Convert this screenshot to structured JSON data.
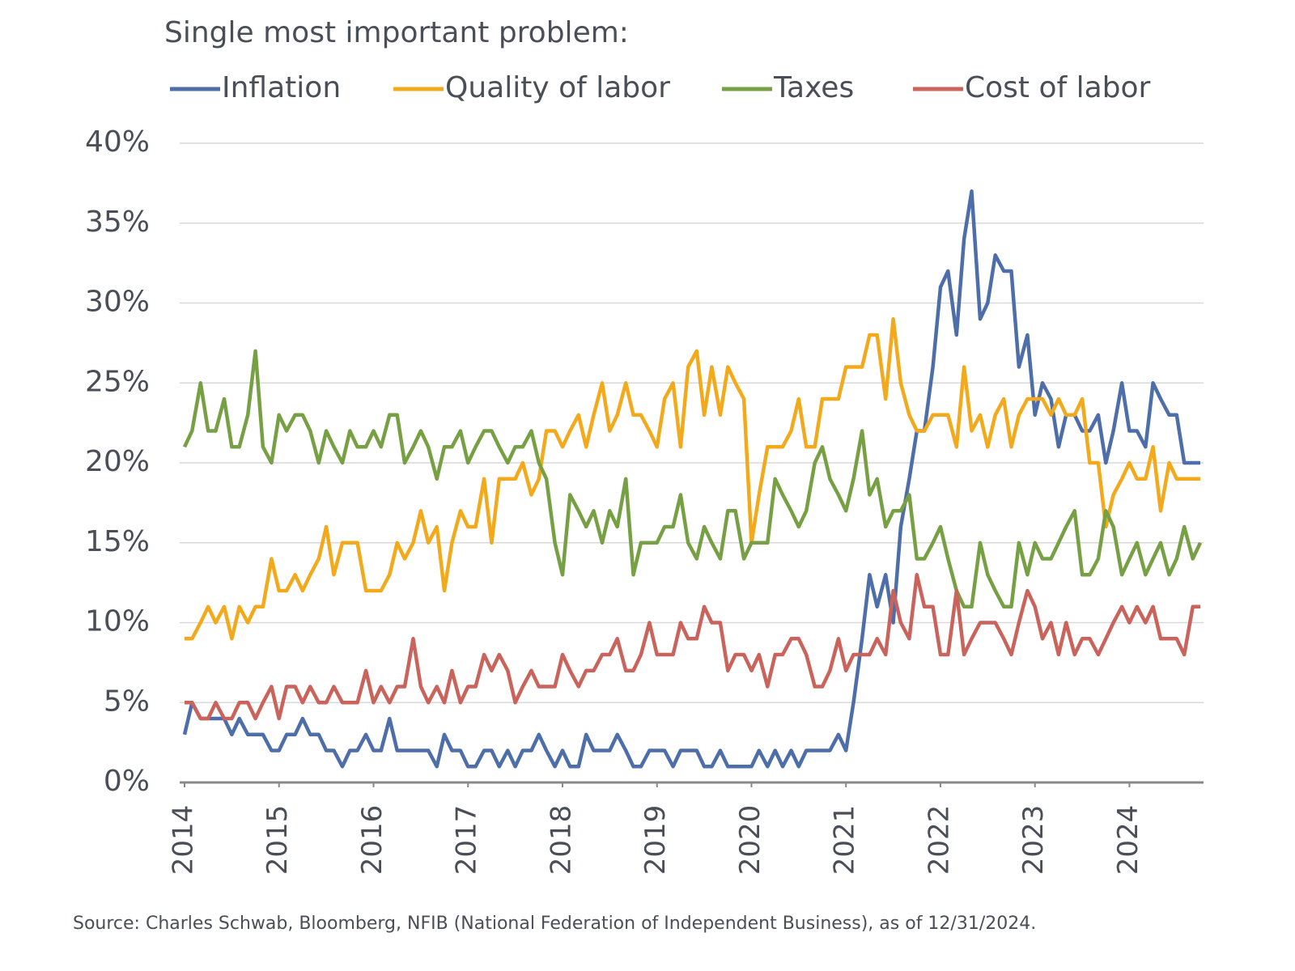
{
  "chart_data": {
    "type": "line",
    "title": "Single most important problem:",
    "source": "Source: Charles Schwab, Bloomberg, NFIB (National Federation of Independent Business), as of 12/31/2024.",
    "x": [
      2014,
      2014.08,
      2014.17,
      2014.25,
      2014.33,
      2014.42,
      2014.5,
      2014.58,
      2014.67,
      2014.75,
      2014.83,
      2014.92,
      2015,
      2015.08,
      2015.17,
      2015.25,
      2015.33,
      2015.42,
      2015.5,
      2015.58,
      2015.67,
      2015.75,
      2015.83,
      2015.92,
      2016,
      2016.08,
      2016.17,
      2016.25,
      2016.33,
      2016.42,
      2016.5,
      2016.58,
      2016.67,
      2016.75,
      2016.83,
      2016.92,
      2017,
      2017.08,
      2017.17,
      2017.25,
      2017.33,
      2017.42,
      2017.5,
      2017.58,
      2017.67,
      2017.75,
      2017.83,
      2017.92,
      2018,
      2018.08,
      2018.17,
      2018.25,
      2018.33,
      2018.42,
      2018.5,
      2018.58,
      2018.67,
      2018.75,
      2018.83,
      2018.92,
      2019,
      2019.08,
      2019.17,
      2019.25,
      2019.33,
      2019.42,
      2019.5,
      2019.58,
      2019.67,
      2019.75,
      2019.83,
      2019.92,
      2020,
      2020.08,
      2020.17,
      2020.25,
      2020.33,
      2020.42,
      2020.5,
      2020.58,
      2020.67,
      2020.75,
      2020.83,
      2020.92,
      2021,
      2021.08,
      2021.17,
      2021.25,
      2021.33,
      2021.42,
      2021.5,
      2021.58,
      2021.67,
      2021.75,
      2021.83,
      2021.92,
      2022,
      2022.08,
      2022.17,
      2022.25,
      2022.33,
      2022.42,
      2022.5,
      2022.58,
      2022.67,
      2022.75,
      2022.83,
      2022.92,
      2023,
      2023.08,
      2023.17,
      2023.25,
      2023.33,
      2023.42,
      2023.5,
      2023.58,
      2023.67,
      2023.75,
      2023.83,
      2023.92,
      2024,
      2024.08,
      2024.17,
      2024.25,
      2024.33,
      2024.42,
      2024.5,
      2024.58,
      2024.67,
      2024.75
    ],
    "series": [
      {
        "name": "Inflation",
        "color": "#4d6ea8",
        "values": [
          3,
          5,
          4,
          4,
          4,
          4,
          3,
          4,
          3,
          3,
          3,
          2,
          2,
          3,
          3,
          4,
          3,
          3,
          2,
          2,
          1,
          2,
          2,
          3,
          2,
          2,
          4,
          2,
          2,
          2,
          2,
          2,
          1,
          3,
          2,
          2,
          1,
          1,
          2,
          2,
          1,
          2,
          1,
          2,
          2,
          3,
          2,
          1,
          2,
          1,
          1,
          3,
          2,
          2,
          2,
          3,
          2,
          1,
          1,
          2,
          2,
          2,
          1,
          2,
          2,
          2,
          1,
          1,
          2,
          1,
          1,
          1,
          1,
          2,
          1,
          2,
          1,
          2,
          1,
          2,
          2,
          2,
          2,
          3,
          2,
          5,
          9,
          13,
          11,
          13,
          10,
          16,
          19,
          22,
          22,
          26,
          31,
          32,
          28,
          34,
          37,
          29,
          30,
          33,
          32,
          32,
          26,
          28,
          23,
          25,
          24,
          21,
          23,
          23,
          22,
          22,
          23,
          20,
          22,
          25,
          22,
          22,
          21,
          25,
          24,
          23,
          23,
          20,
          20,
          20
        ]
      },
      {
        "name": "Quality of labor",
        "color": "#f2aa1c",
        "values": [
          9,
          9,
          10,
          11,
          10,
          11,
          9,
          11,
          10,
          11,
          11,
          14,
          12,
          12,
          13,
          12,
          13,
          14,
          16,
          13,
          15,
          15,
          15,
          12,
          12,
          12,
          13,
          15,
          14,
          15,
          17,
          15,
          16,
          12,
          15,
          17,
          16,
          16,
          19,
          15,
          19,
          19,
          19,
          20,
          18,
          19,
          22,
          22,
          21,
          22,
          23,
          21,
          23,
          25,
          22,
          23,
          25,
          23,
          23,
          22,
          21,
          24,
          25,
          21,
          26,
          27,
          23,
          26,
          23,
          26,
          25,
          24,
          15,
          18,
          21,
          21,
          21,
          22,
          24,
          21,
          21,
          24,
          24,
          24,
          26,
          26,
          26,
          28,
          28,
          24,
          29,
          25,
          23,
          22,
          22,
          23,
          23,
          23,
          21,
          26,
          22,
          23,
          21,
          23,
          24,
          21,
          23,
          24,
          24,
          24,
          23,
          24,
          23,
          23,
          24,
          20,
          20,
          16,
          18,
          19,
          20,
          19,
          19,
          21,
          17,
          20,
          19,
          19,
          19,
          19
        ]
      },
      {
        "name": "Taxes",
        "color": "#76a043",
        "values": [
          21,
          22,
          25,
          22,
          22,
          24,
          21,
          21,
          23,
          27,
          21,
          20,
          23,
          22,
          23,
          23,
          22,
          20,
          22,
          21,
          20,
          22,
          21,
          21,
          22,
          21,
          23,
          23,
          20,
          21,
          22,
          21,
          19,
          21,
          21,
          22,
          20,
          21,
          22,
          22,
          21,
          20,
          21,
          21,
          22,
          20,
          19,
          15,
          13,
          18,
          17,
          16,
          17,
          15,
          17,
          16,
          19,
          13,
          15,
          15,
          15,
          16,
          16,
          18,
          15,
          14,
          16,
          15,
          14,
          17,
          17,
          14,
          15,
          15,
          15,
          19,
          18,
          17,
          16,
          17,
          20,
          21,
          19,
          18,
          17,
          19,
          22,
          18,
          19,
          16,
          17,
          17,
          18,
          14,
          14,
          15,
          16,
          14,
          12,
          11,
          11,
          15,
          13,
          12,
          11,
          11,
          15,
          13,
          15,
          14,
          14,
          15,
          16,
          17,
          13,
          13,
          14,
          17,
          16,
          13,
          14,
          15,
          13,
          14,
          15,
          13,
          14,
          16,
          14,
          15
        ]
      },
      {
        "name": "Cost of labor",
        "color": "#c9635b",
        "values": [
          5,
          5,
          4,
          4,
          5,
          4,
          4,
          5,
          5,
          4,
          5,
          6,
          4,
          6,
          6,
          5,
          6,
          5,
          5,
          6,
          5,
          5,
          5,
          7,
          5,
          6,
          5,
          6,
          6,
          9,
          6,
          5,
          6,
          5,
          7,
          5,
          6,
          6,
          8,
          7,
          8,
          7,
          5,
          6,
          7,
          6,
          6,
          6,
          8,
          7,
          6,
          7,
          7,
          8,
          8,
          9,
          7,
          7,
          8,
          10,
          8,
          8,
          8,
          10,
          9,
          9,
          11,
          10,
          10,
          7,
          8,
          8,
          7,
          8,
          6,
          8,
          8,
          9,
          9,
          8,
          6,
          6,
          7,
          9,
          7,
          8,
          8,
          8,
          9,
          8,
          12,
          10,
          9,
          13,
          11,
          11,
          8,
          8,
          12,
          8,
          9,
          10,
          10,
          10,
          9,
          8,
          10,
          12,
          11,
          9,
          10,
          8,
          10,
          8,
          9,
          9,
          8,
          9,
          10,
          11,
          10,
          11,
          10,
          11,
          9,
          9,
          9,
          8,
          11,
          11
        ]
      }
    ],
    "xlim": [
      2014,
      2024.75
    ],
    "xticks": [
      2014,
      2015,
      2016,
      2017,
      2018,
      2019,
      2020,
      2021,
      2022,
      2023,
      2024
    ],
    "ylim": [
      0,
      40
    ],
    "yticks": [
      {
        "value": 0,
        "label": "0%"
      },
      {
        "value": 5,
        "label": "5%"
      },
      {
        "value": 10,
        "label": "10%"
      },
      {
        "value": 15,
        "label": "15%"
      },
      {
        "value": 20,
        "label": "20%"
      },
      {
        "value": 25,
        "label": "25%"
      },
      {
        "value": 30,
        "label": "30%"
      },
      {
        "value": 35,
        "label": "35%"
      },
      {
        "value": 40,
        "label": "40%"
      }
    ],
    "grid": true,
    "legend": "top"
  }
}
